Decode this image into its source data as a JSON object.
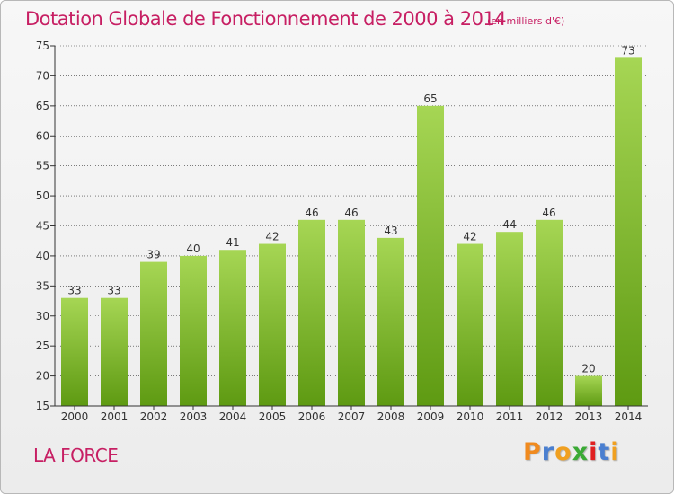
{
  "title": "Dotation Globale de Fonctionnement de 2000 à 2014",
  "subtitle": "(en milliers d'€)",
  "commune": "LA FORCE",
  "logo": {
    "text": "Proxiti",
    "letter_colors": [
      "#f08a1e",
      "#4a7fd0",
      "#f0a020",
      "#3aaa35",
      "#e02020",
      "#4a7fd0",
      "#f0a020"
    ]
  },
  "colors": {
    "title": "#c71f63",
    "bar_light": "#a6d654",
    "bar_dark": "#5e9a12",
    "axis": "#333333",
    "grid": "#333333"
  },
  "chart_data": {
    "type": "bar",
    "title": "Dotation Globale de Fonctionnement de 2000 à 2014",
    "subtitle": "(en milliers d'€)",
    "xlabel": "",
    "ylabel": "",
    "ylim": [
      15,
      75
    ],
    "yticks": [
      15,
      20,
      25,
      30,
      35,
      40,
      45,
      50,
      55,
      60,
      65,
      70,
      75
    ],
    "grid": true,
    "legend": "none",
    "categories": [
      "2000",
      "2001",
      "2002",
      "2003",
      "2004",
      "2005",
      "2006",
      "2007",
      "2008",
      "2009",
      "2010",
      "2011",
      "2012",
      "2013",
      "2014"
    ],
    "values": [
      33,
      33,
      39,
      40,
      41,
      42,
      46,
      46,
      43,
      65,
      42,
      44,
      46,
      20,
      73
    ]
  }
}
